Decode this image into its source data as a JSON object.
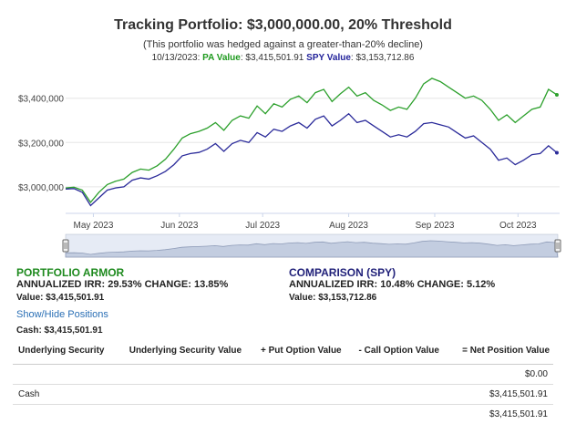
{
  "header": {
    "title": "Tracking Portfolio: $3,000,000.00, 20% Threshold",
    "subtitle": "(This portfolio was hedged against a greater-than-20% decline)",
    "date": "10/13/2023:",
    "pa_label": "PA Value",
    "pa_value": "$3,415,501.91",
    "spy_label": "SPY Value",
    "spy_value": "$3,153,712.86"
  },
  "chart_data": {
    "type": "line",
    "x_range": [
      0,
      178
    ],
    "ylim": [
      2880000,
      3580000
    ],
    "y_ticks": [
      {
        "value": 3000000,
        "label": "$3,000,000"
      },
      {
        "value": 3200000,
        "label": "$3,200,000"
      },
      {
        "value": 3400000,
        "label": "$3,400,000"
      }
    ],
    "x_ticks": [
      {
        "day": 10,
        "label": "May 2023"
      },
      {
        "day": 41,
        "label": "Jun 2023"
      },
      {
        "day": 71,
        "label": "Jul 2023"
      },
      {
        "day": 102,
        "label": "Aug 2023"
      },
      {
        "day": 133,
        "label": "Sep 2023"
      },
      {
        "day": 163,
        "label": "Oct 2023"
      }
    ],
    "series": [
      {
        "name": "PA Value",
        "color": "#2ca02c",
        "x": [
          0,
          3,
          6,
          9,
          12,
          15,
          18,
          21,
          24,
          27,
          30,
          33,
          36,
          39,
          42,
          45,
          48,
          51,
          54,
          57,
          60,
          63,
          66,
          69,
          72,
          75,
          78,
          81,
          84,
          87,
          90,
          93,
          96,
          99,
          102,
          105,
          108,
          111,
          114,
          117,
          120,
          123,
          126,
          129,
          132,
          135,
          138,
          141,
          144,
          147,
          150,
          153,
          156,
          159,
          162,
          165,
          168,
          171,
          174,
          177
        ],
        "values": [
          2995000,
          2998000,
          2985000,
          2930000,
          2975000,
          3010000,
          3025000,
          3035000,
          3065000,
          3080000,
          3075000,
          3095000,
          3125000,
          3170000,
          3220000,
          3240000,
          3250000,
          3265000,
          3290000,
          3255000,
          3300000,
          3320000,
          3310000,
          3365000,
          3330000,
          3375000,
          3360000,
          3395000,
          3410000,
          3380000,
          3425000,
          3440000,
          3385000,
          3420000,
          3450000,
          3410000,
          3425000,
          3390000,
          3370000,
          3345000,
          3360000,
          3350000,
          3400000,
          3465000,
          3490000,
          3475000,
          3450000,
          3425000,
          3400000,
          3410000,
          3390000,
          3350000,
          3300000,
          3325000,
          3290000,
          3320000,
          3350000,
          3360000,
          3440000,
          3415502
        ]
      },
      {
        "name": "SPY Value",
        "color": "#2b2b9a",
        "x": [
          0,
          3,
          6,
          9,
          12,
          15,
          18,
          21,
          24,
          27,
          30,
          33,
          36,
          39,
          42,
          45,
          48,
          51,
          54,
          57,
          60,
          63,
          66,
          69,
          72,
          75,
          78,
          81,
          84,
          87,
          90,
          93,
          96,
          99,
          102,
          105,
          108,
          111,
          114,
          117,
          120,
          123,
          126,
          129,
          132,
          135,
          138,
          141,
          144,
          147,
          150,
          153,
          156,
          159,
          162,
          165,
          168,
          171,
          174,
          177
        ],
        "values": [
          2990000,
          2992000,
          2975000,
          2915000,
          2950000,
          2985000,
          2995000,
          3000000,
          3030000,
          3040000,
          3035000,
          3050000,
          3070000,
          3100000,
          3140000,
          3150000,
          3155000,
          3170000,
          3195000,
          3160000,
          3195000,
          3210000,
          3200000,
          3245000,
          3225000,
          3260000,
          3250000,
          3275000,
          3290000,
          3265000,
          3305000,
          3320000,
          3275000,
          3300000,
          3330000,
          3290000,
          3300000,
          3275000,
          3250000,
          3225000,
          3235000,
          3225000,
          3250000,
          3285000,
          3290000,
          3280000,
          3270000,
          3245000,
          3220000,
          3230000,
          3200000,
          3170000,
          3120000,
          3130000,
          3100000,
          3120000,
          3145000,
          3150000,
          3185000,
          3153713
        ]
      }
    ]
  },
  "portfolio_armor": {
    "heading": "PORTFOLIO ARMOR",
    "stats": "ANNUALIZED IRR: 29.53% CHANGE: 13.85%",
    "value": "Value: $3,415,501.91"
  },
  "comparison": {
    "heading": "COMPARISON (SPY)",
    "stats": "ANNUALIZED IRR: 10.48% CHANGE: 5.12%",
    "value": "Value: $3,153,712.86"
  },
  "toggle_label": "Show/Hide Positions",
  "cash_label": "Cash: $3,415,501.91",
  "positions_table": {
    "headers": [
      "Underlying Security",
      "Underlying Security Value",
      "+ Put Option Value",
      "- Call Option Value",
      "= Net Position Value"
    ],
    "rows": [
      [
        "",
        "",
        "",
        "",
        "$0.00"
      ],
      [
        "Cash",
        "",
        "",
        "",
        "$3,415,501.91"
      ],
      [
        "",
        "",
        "",
        "",
        "$3,415,501.91"
      ]
    ]
  }
}
